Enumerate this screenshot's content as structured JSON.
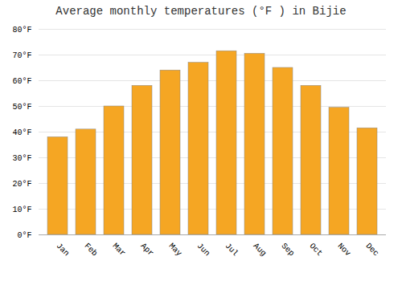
{
  "chart_data": {
    "type": "bar",
    "title": "Average monthly temperatures (°F ) in Bijie",
    "categories": [
      "Jan",
      "Feb",
      "Mar",
      "Apr",
      "May",
      "Jun",
      "Jul",
      "Aug",
      "Sep",
      "Oct",
      "Nov",
      "Dec"
    ],
    "values": [
      38,
      41,
      50,
      58,
      64,
      67,
      71.5,
      70.5,
      65,
      58,
      49.5,
      41.5
    ],
    "color": "#F5A623",
    "ylim": [
      0,
      80
    ],
    "yticks": [
      {
        "value": 0,
        "label": "0°F"
      },
      {
        "value": 10,
        "label": "10°F"
      },
      {
        "value": 20,
        "label": "20°F"
      },
      {
        "value": 30,
        "label": "30°F"
      },
      {
        "value": 40,
        "label": "40°F"
      },
      {
        "value": 50,
        "label": "50°F"
      },
      {
        "value": 60,
        "label": "60°F"
      },
      {
        "value": 70,
        "label": "70°F"
      },
      {
        "value": 80,
        "label": "80°F"
      }
    ],
    "grid": true
  }
}
